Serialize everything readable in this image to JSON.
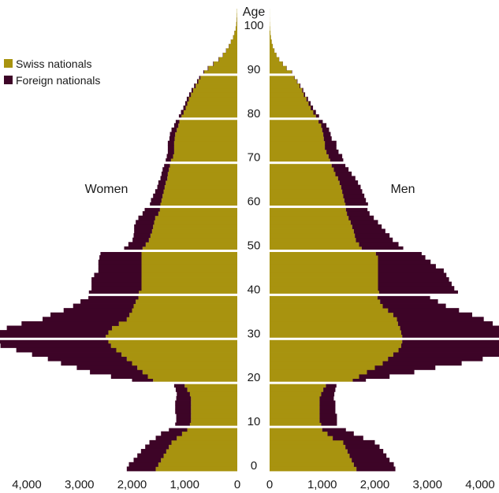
{
  "chart_data": {
    "type": "bar",
    "orientation": "horizontal population pyramid",
    "age_label": "Age",
    "left_group": "Women",
    "right_group": "Men",
    "series": [
      {
        "name": "Swiss nationals",
        "color": "#a8930f"
      },
      {
        "name": "Foreign nationals",
        "color": "#3d0427"
      }
    ],
    "age_ticks": [
      "0",
      "10",
      "20",
      "30",
      "40",
      "50",
      "60",
      "70",
      "80",
      "90",
      "100"
    ],
    "x_ticks_left": [
      "4,000",
      "3,000",
      "2,000",
      "1,000",
      "0"
    ],
    "x_ticks_right": [
      "0",
      "1,000",
      "2,000",
      "3,000",
      "4,000"
    ],
    "xlim": [
      0,
      4600
    ],
    "ylim": [
      0,
      105
    ],
    "separator_every_years": 10,
    "ages": [
      0,
      1,
      2,
      3,
      4,
      5,
      6,
      7,
      8,
      9,
      10,
      11,
      12,
      13,
      14,
      15,
      16,
      17,
      18,
      19,
      20,
      21,
      22,
      23,
      24,
      25,
      26,
      27,
      28,
      29,
      30,
      31,
      32,
      33,
      34,
      35,
      36,
      37,
      38,
      39,
      40,
      41,
      42,
      43,
      44,
      45,
      46,
      47,
      48,
      49,
      50,
      51,
      52,
      53,
      54,
      55,
      56,
      57,
      58,
      59,
      60,
      61,
      62,
      63,
      64,
      65,
      66,
      67,
      68,
      69,
      70,
      71,
      72,
      73,
      74,
      75,
      76,
      77,
      78,
      79,
      80,
      81,
      82,
      83,
      84,
      85,
      86,
      87,
      88,
      89,
      90,
      91,
      92,
      93,
      94,
      95,
      96,
      97,
      98,
      99,
      100,
      101,
      102,
      103,
      104
    ],
    "women_swiss": [
      1550,
      1500,
      1450,
      1400,
      1350,
      1300,
      1250,
      1150,
      1050,
      950,
      900,
      880,
      880,
      880,
      880,
      880,
      880,
      900,
      950,
      1000,
      1600,
      1700,
      1800,
      1900,
      2000,
      2100,
      2200,
      2300,
      2400,
      2450,
      2500,
      2450,
      2380,
      2250,
      2100,
      2050,
      2000,
      1970,
      1930,
      1880,
      1870,
      1820,
      1820,
      1820,
      1820,
      1820,
      1820,
      1820,
      1820,
      1820,
      1800,
      1740,
      1680,
      1650,
      1620,
      1600,
      1580,
      1560,
      1500,
      1470,
      1460,
      1440,
      1420,
      1400,
      1380,
      1360,
      1330,
      1320,
      1300,
      1280,
      1260,
      1220,
      1200,
      1200,
      1200,
      1190,
      1180,
      1150,
      1120,
      1100,
      1060,
      1020,
      980,
      950,
      920,
      880,
      840,
      790,
      740,
      700,
      630,
      550,
      450,
      350,
      270,
      210,
      160,
      120,
      80,
      55,
      30,
      20,
      12,
      8,
      5
    ],
    "women_foreign": [
      550,
      560,
      520,
      500,
      480,
      450,
      420,
      400,
      400,
      350,
      280,
      280,
      280,
      300,
      300,
      300,
      280,
      250,
      220,
      200,
      400,
      700,
      1000,
      1150,
      1350,
      1500,
      1700,
      1900,
      2100,
      2250,
      2200,
      2100,
      2000,
      1850,
      1600,
      1500,
      1300,
      1150,
      1050,
      950,
      950,
      950,
      950,
      950,
      900,
      820,
      820,
      820,
      800,
      780,
      350,
      330,
      310,
      320,
      340,
      360,
      350,
      320,
      300,
      290,
      200,
      200,
      180,
      160,
      140,
      140,
      130,
      120,
      120,
      110,
      100,
      120,
      120,
      120,
      120,
      100,
      100,
      100,
      80,
      70,
      50,
      50,
      45,
      40,
      40,
      35,
      30,
      30,
      25,
      25,
      15,
      12,
      10,
      8,
      6,
      5,
      4,
      3,
      2,
      2,
      1,
      1,
      1,
      0,
      0
    ],
    "men_swiss": [
      1650,
      1600,
      1560,
      1520,
      1480,
      1440,
      1400,
      1200,
      1100,
      1000,
      980,
      950,
      950,
      950,
      950,
      950,
      950,
      980,
      1020,
      1070,
      1580,
      1700,
      1850,
      2000,
      2150,
      2250,
      2350,
      2450,
      2500,
      2520,
      2520,
      2500,
      2480,
      2440,
      2420,
      2350,
      2250,
      2150,
      2100,
      2050,
      2080,
      2060,
      2060,
      2060,
      2060,
      2060,
      2060,
      2060,
      2060,
      2020,
      1750,
      1700,
      1640,
      1620,
      1600,
      1570,
      1540,
      1500,
      1470,
      1450,
      1440,
      1420,
      1400,
      1380,
      1360,
      1330,
      1300,
      1250,
      1220,
      1180,
      1150,
      1120,
      1080,
      1050,
      1050,
      1030,
      1020,
      1000,
      980,
      930,
      880,
      830,
      780,
      740,
      700,
      650,
      620,
      570,
      520,
      470,
      420,
      320,
      250,
      180,
      130,
      90,
      60,
      40,
      25,
      15,
      8,
      4,
      2,
      1,
      1
    ],
    "men_foreign": [
      740,
      760,
      720,
      700,
      680,
      650,
      600,
      580,
      500,
      450,
      300,
      330,
      330,
      300,
      300,
      300,
      270,
      250,
      230,
      200,
      250,
      580,
      900,
      1150,
      1500,
      1800,
      2100,
      2150,
      2050,
      2200,
      2250,
      2150,
      2000,
      1800,
      1650,
      1500,
      1350,
      1200,
      1100,
      1000,
      1500,
      1450,
      1400,
      1350,
      1300,
      1250,
      1100,
      1000,
      900,
      870,
      790,
      750,
      700,
      660,
      600,
      560,
      520,
      480,
      430,
      410,
      430,
      410,
      400,
      380,
      370,
      350,
      330,
      310,
      280,
      260,
      250,
      260,
      230,
      220,
      220,
      150,
      140,
      130,
      100,
      80,
      60,
      50,
      45,
      40,
      30,
      25,
      20,
      15,
      10,
      8,
      8,
      6,
      4,
      3,
      2,
      2,
      1,
      1,
      0,
      0,
      0,
      0,
      0,
      0,
      0
    ]
  }
}
